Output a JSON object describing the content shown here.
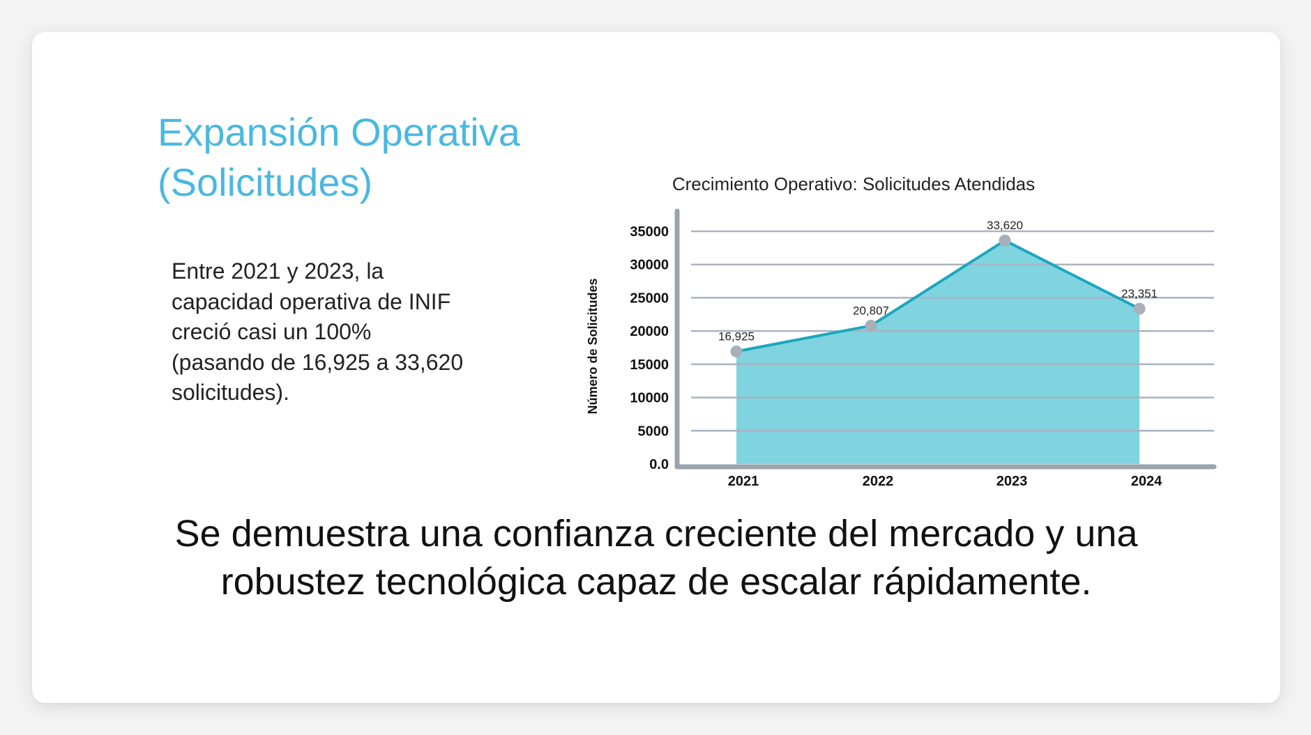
{
  "slide": {
    "title_line1": "Expansión Operativa",
    "title_line2": "(Solicitudes)",
    "body": "Entre 2021 y 2023, la capacidad operativa de INIF creció casi un 100% (pasando de 16,925 a 33,620 solicitudes).",
    "conclusion_line1": "Se demuestra una confianza creciente del mercado y una",
    "conclusion_line2": "robustez tecnológica capaz de escalar rápidamente."
  },
  "chart_data": {
    "type": "area",
    "title": "Crecimiento Operativo: Solicitudes Atendidas",
    "xlabel": "",
    "ylabel": "Número de Solicitudes",
    "categories": [
      "2021",
      "2022",
      "2023",
      "2024"
    ],
    "series": [
      {
        "values": [
          16925,
          20807,
          33620,
          23351
        ],
        "labels": [
          "16,925",
          "20,807",
          "33,620",
          "23,351"
        ]
      }
    ],
    "ylim": [
      0,
      35000
    ],
    "yticks": [
      0,
      5000,
      10000,
      15000,
      20000,
      25000,
      30000,
      35000
    ],
    "ytick_labels": [
      "0.0",
      "5000",
      "10000",
      "15000",
      "20000",
      "25000",
      "30000",
      "35000"
    ],
    "grid": true,
    "legend": "none",
    "colors": {
      "fill": "#7fd4e0",
      "line": "#1ba7bd",
      "marker": "#a9afb8",
      "grid": "#a9b3c2",
      "axis": "#9aa3ae"
    }
  }
}
